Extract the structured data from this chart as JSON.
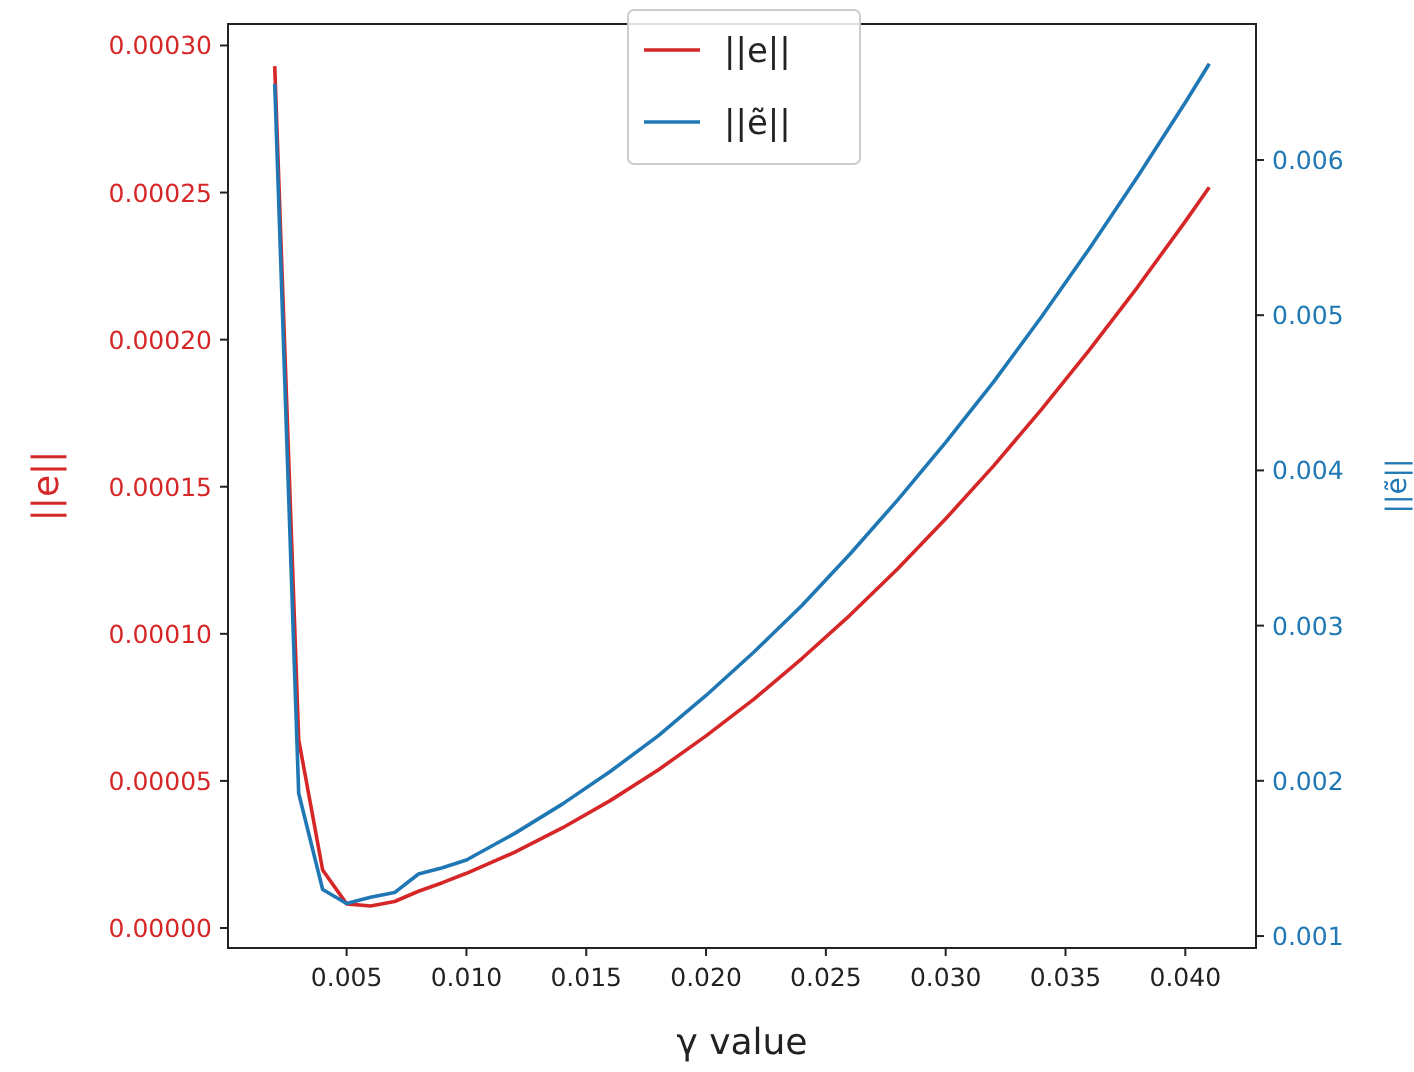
{
  "chart_data": {
    "type": "line",
    "xlabel": "γ value",
    "ylabel": "||e||",
    "y2label": "||ẽ||",
    "legend": "top",
    "grid": false,
    "marker": "none",
    "line_style": "solid",
    "x": [
      0.002,
      0.003,
      0.004,
      0.005,
      0.006,
      0.007,
      0.008,
      0.009,
      0.01,
      0.012,
      0.014,
      0.016,
      0.018,
      0.02,
      0.022,
      0.024,
      0.026,
      0.028,
      0.03,
      0.032,
      0.034,
      0.036,
      0.038,
      0.04,
      0.041
    ],
    "series": [
      {
        "name": "||e||",
        "color": "#d62728",
        "values": [
          0.000293,
          6.4e-05,
          1.97e-05,
          8.2e-06,
          7.5e-06,
          9e-06,
          1.25e-05,
          1.54e-05,
          1.86e-05,
          2.57e-05,
          3.4e-05,
          4.33e-05,
          5.37e-05,
          6.53e-05,
          7.78e-05,
          9.16e-05,
          0.0001063,
          0.0001221,
          0.0001391,
          0.0001571,
          0.0001763,
          0.0001965,
          0.0002178,
          0.0002402,
          0.0002518
        ]
      },
      {
        "name": "||ẽ||",
        "color": "#1f77b4",
        "axis": "y2",
        "values": [
          0.00649,
          0.00192,
          0.0013,
          0.00121,
          0.00125,
          0.00128,
          0.0014,
          0.00144,
          0.00149,
          0.00166,
          0.00185,
          0.00206,
          0.00229,
          0.00255,
          0.00283,
          0.00313,
          0.00346,
          0.00381,
          0.00418,
          0.00457,
          0.00499,
          0.00543,
          0.00589,
          0.00637,
          0.00662
        ]
      }
    ],
    "xlim": [
      5e-05,
      0.04295
    ],
    "xticks": [
      {
        "value": 0.005,
        "label": "0.005"
      },
      {
        "value": 0.01,
        "label": "0.010"
      },
      {
        "value": 0.015,
        "label": "0.015"
      },
      {
        "value": 0.02,
        "label": "0.020"
      },
      {
        "value": 0.025,
        "label": "0.025"
      },
      {
        "value": 0.03,
        "label": "0.030"
      },
      {
        "value": 0.035,
        "label": "0.035"
      },
      {
        "value": 0.04,
        "label": "0.040"
      }
    ],
    "ylim": [
      -6.8e-06,
      0.0003073
    ],
    "yticks": [
      {
        "value": 0,
        "label": "0.00000"
      },
      {
        "value": 5e-05,
        "label": "0.00005"
      },
      {
        "value": 0.0001,
        "label": "0.00010"
      },
      {
        "value": 0.00015,
        "label": "0.00015"
      },
      {
        "value": 0.0002,
        "label": "0.00020"
      },
      {
        "value": 0.00025,
        "label": "0.00025"
      },
      {
        "value": 0.0003,
        "label": "0.00030"
      }
    ],
    "y2lim": [
      0.000923,
      0.006876
    ],
    "y2ticks": [
      0.001,
      0.002,
      0.003,
      0.004,
      0.005,
      0.006
    ]
  }
}
